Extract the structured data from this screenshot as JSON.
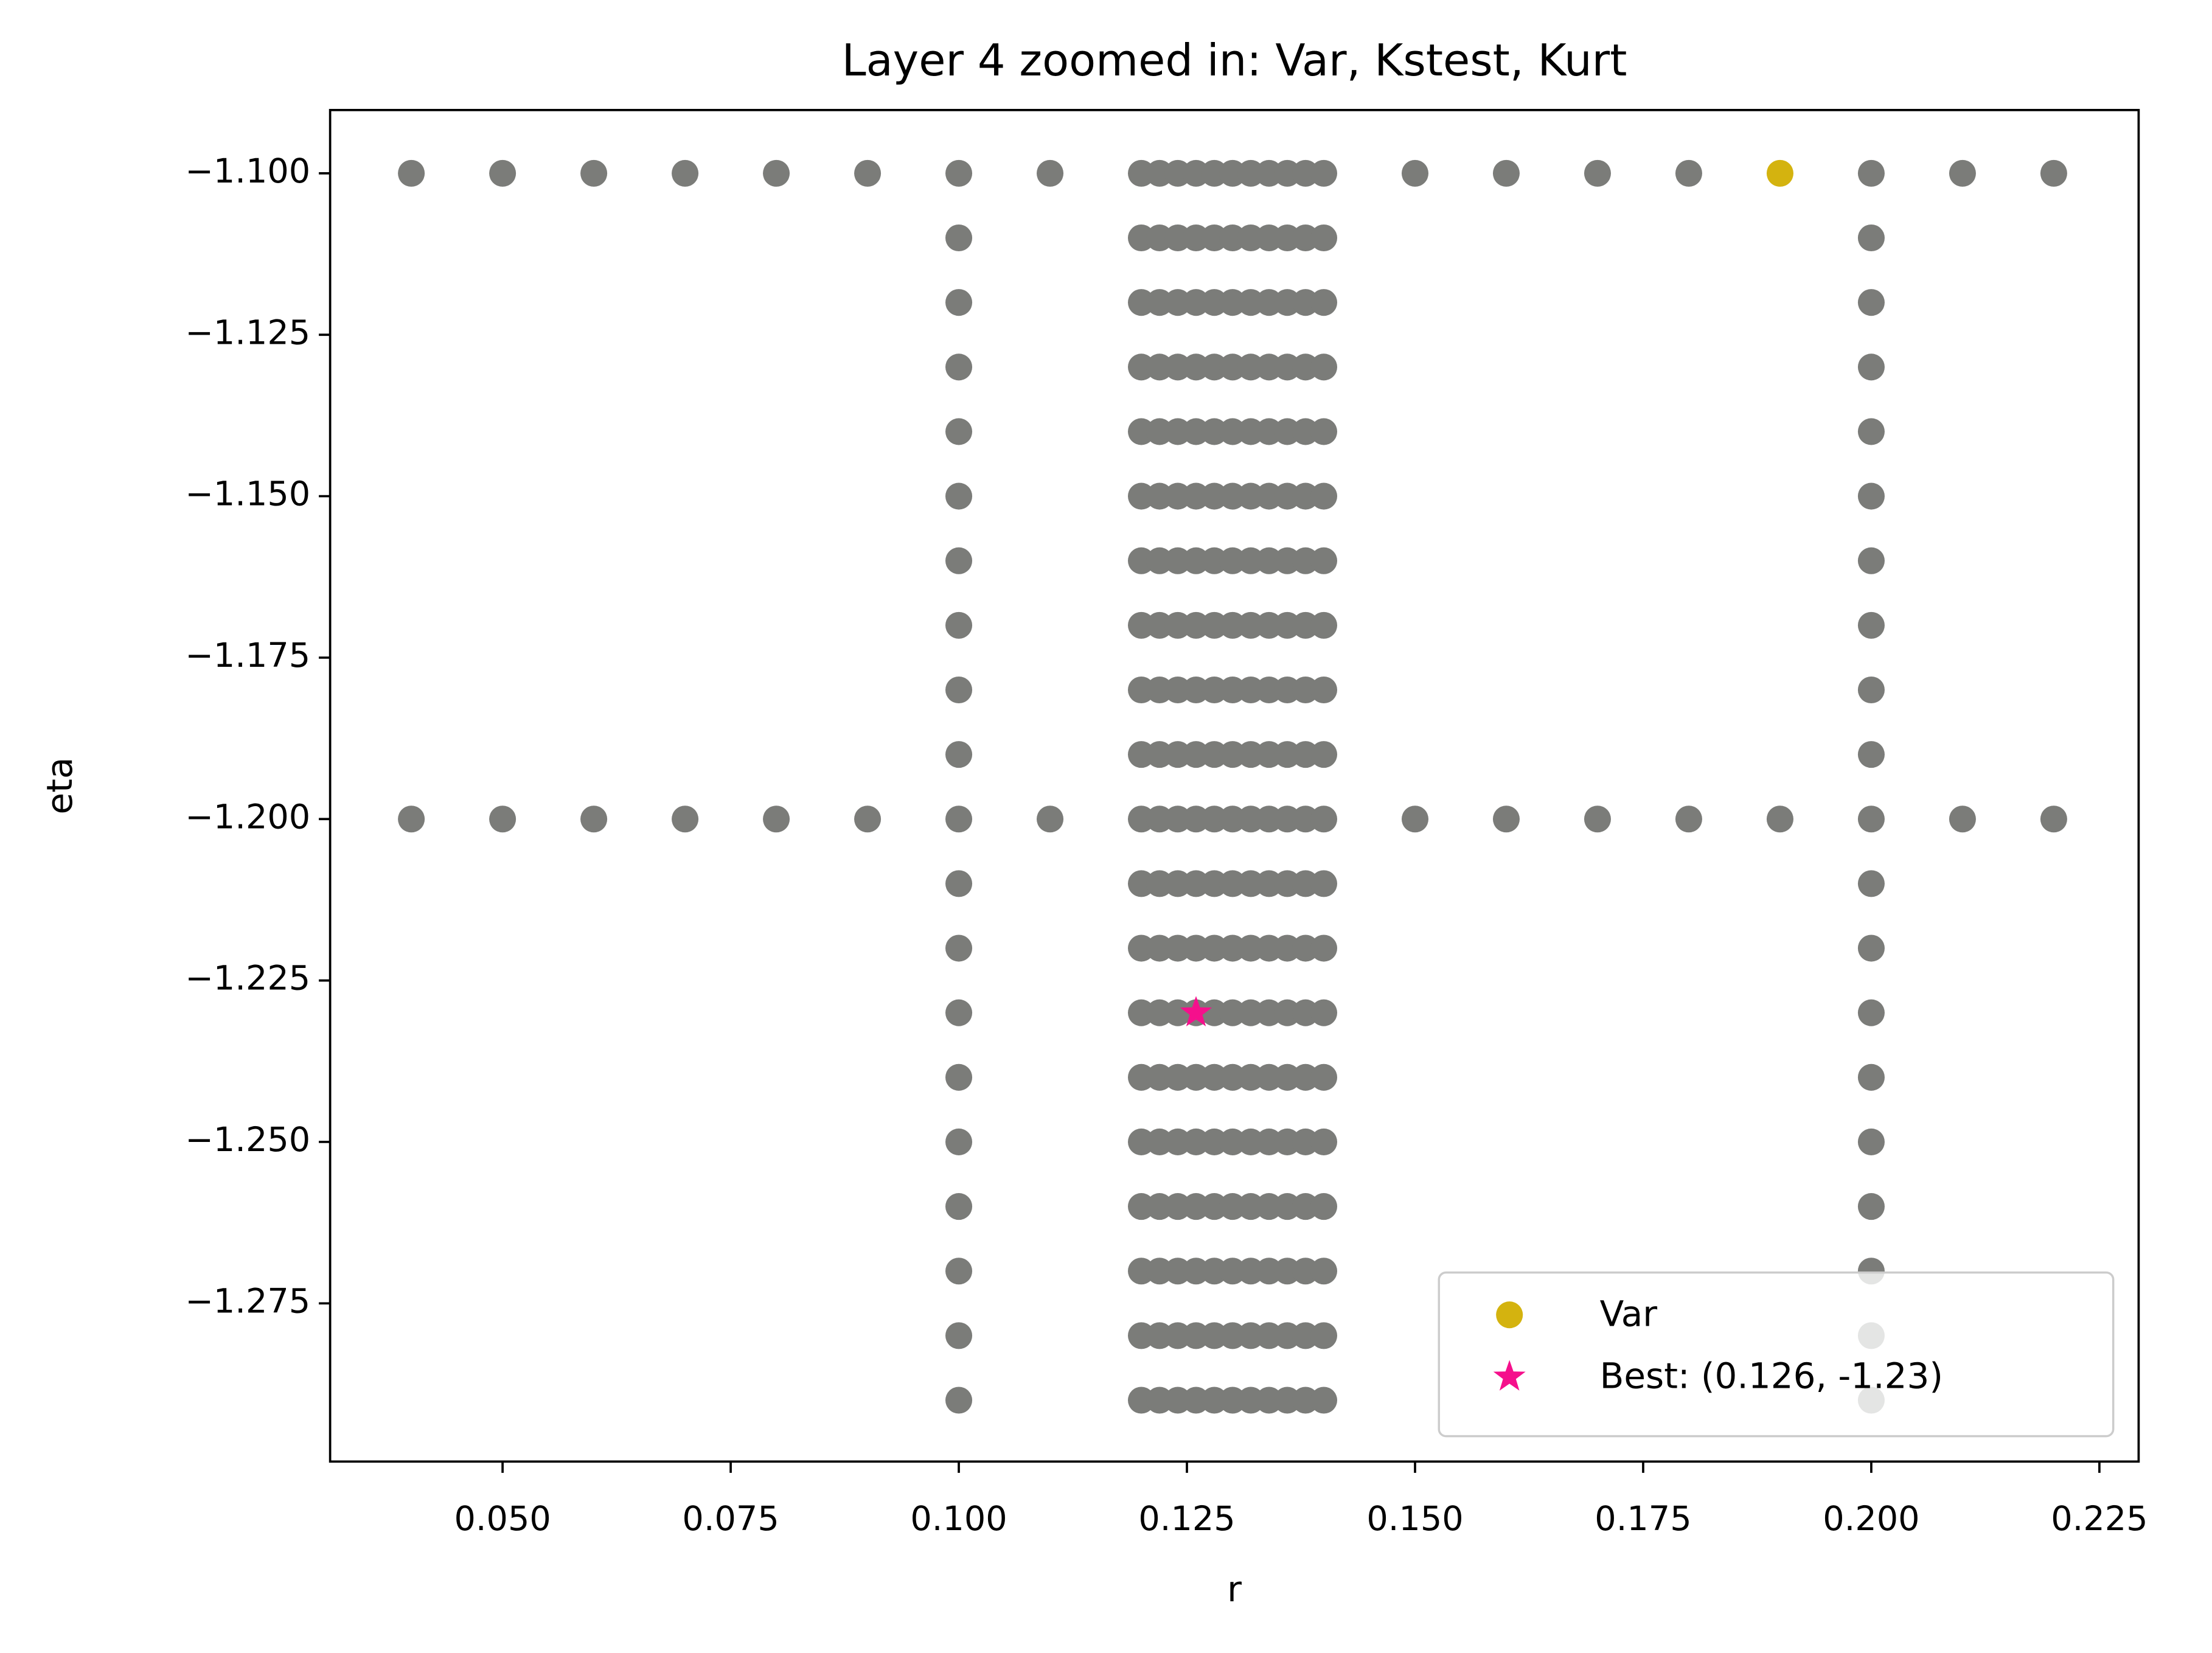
{
  "chart_data": {
    "type": "scatter",
    "title": "Layer 4 zoomed in: Var, Kstest, Kurt",
    "x_label": "r",
    "y_label": "eta",
    "xlim": [
      0.0311,
      0.2293
    ],
    "ylim": [
      -1.2995,
      -1.0902
    ],
    "xticks": [
      {
        "value": 0.05,
        "label": "0.050"
      },
      {
        "value": 0.075,
        "label": "0.075"
      },
      {
        "value": 0.1,
        "label": "0.100"
      },
      {
        "value": 0.125,
        "label": "0.125"
      },
      {
        "value": 0.15,
        "label": "0.150"
      },
      {
        "value": 0.175,
        "label": "0.175"
      },
      {
        "value": 0.2,
        "label": "0.200"
      },
      {
        "value": 0.225,
        "label": "0.225"
      }
    ],
    "yticks": [
      {
        "value": -1.1,
        "label": "−1.100"
      },
      {
        "value": -1.125,
        "label": "−1.125"
      },
      {
        "value": -1.15,
        "label": "−1.150"
      },
      {
        "value": -1.175,
        "label": "−1.175"
      },
      {
        "value": -1.2,
        "label": "−1.200"
      },
      {
        "value": -1.225,
        "label": "−1.225"
      },
      {
        "value": -1.25,
        "label": "−1.250"
      },
      {
        "value": -1.275,
        "label": "−1.275"
      }
    ],
    "legend": "lower right",
    "series": [
      {
        "color": "#7b7c79",
        "marker": "circle",
        "x": [
          0.04,
          0.05,
          0.06,
          0.07,
          0.08,
          0.09,
          0.1,
          0.11,
          0.15,
          0.16,
          0.17,
          0.18,
          0.2,
          0.21,
          0.22
        ],
        "y": [
          -1.1,
          -1.1,
          -1.1,
          -1.1,
          -1.1,
          -1.1,
          -1.1,
          -1.1,
          -1.1,
          -1.1,
          -1.1,
          -1.1,
          -1.1,
          -1.1,
          -1.1
        ]
      },
      {
        "color": "#7b7c79",
        "marker": "circle",
        "x": [
          0.04,
          0.05,
          0.06,
          0.07,
          0.08,
          0.09,
          0.1,
          0.11,
          0.15,
          0.16,
          0.17,
          0.18,
          0.19,
          0.2,
          0.21,
          0.22
        ],
        "y": [
          -1.2,
          -1.2,
          -1.2,
          -1.2,
          -1.2,
          -1.2,
          -1.2,
          -1.2,
          -1.2,
          -1.2,
          -1.2,
          -1.2,
          -1.2,
          -1.2,
          -1.2,
          -1.2
        ]
      },
      {
        "color": "#7b7c79",
        "marker": "circle",
        "x": [
          0.1,
          0.1,
          0.1,
          0.1,
          0.1,
          0.1,
          0.1,
          0.1,
          0.1,
          0.1,
          0.1,
          0.1,
          0.1,
          0.1,
          0.1,
          0.1,
          0.1,
          0.1
        ],
        "y": [
          -1.11,
          -1.12,
          -1.13,
          -1.14,
          -1.15,
          -1.16,
          -1.17,
          -1.18,
          -1.19,
          -1.21,
          -1.22,
          -1.23,
          -1.24,
          -1.25,
          -1.26,
          -1.27,
          -1.28,
          -1.29
        ]
      },
      {
        "color": "#7b7c79",
        "marker": "circle",
        "x": [
          0.2,
          0.2,
          0.2,
          0.2,
          0.2,
          0.2,
          0.2,
          0.2,
          0.2,
          0.2,
          0.2,
          0.2,
          0.2,
          0.2,
          0.2,
          0.2,
          0.2,
          0.2
        ],
        "y": [
          -1.11,
          -1.12,
          -1.13,
          -1.14,
          -1.15,
          -1.16,
          -1.17,
          -1.18,
          -1.19,
          -1.21,
          -1.22,
          -1.23,
          -1.24,
          -1.25,
          -1.26,
          -1.27,
          -1.28,
          -1.29
        ]
      },
      {
        "color": "#7b7c79",
        "marker": "circle",
        "x": [
          0.12,
          0.122,
          0.124,
          0.126,
          0.128,
          0.13,
          0.132,
          0.134,
          0.136,
          0.138,
          0.14
        ],
        "y": [
          -1.1,
          -1.1,
          -1.1,
          -1.1,
          -1.1,
          -1.1,
          -1.1,
          -1.1,
          -1.1,
          -1.1,
          -1.1
        ]
      },
      {
        "color": "#7b7c79",
        "marker": "circle",
        "x": [
          0.12,
          0.122,
          0.124,
          0.126,
          0.128,
          0.13,
          0.132,
          0.134,
          0.136,
          0.138,
          0.14
        ],
        "y": [
          -1.11,
          -1.11,
          -1.11,
          -1.11,
          -1.11,
          -1.11,
          -1.11,
          -1.11,
          -1.11,
          -1.11,
          -1.11
        ]
      },
      {
        "color": "#7b7c79",
        "marker": "circle",
        "x": [
          0.12,
          0.122,
          0.124,
          0.126,
          0.128,
          0.13,
          0.132,
          0.134,
          0.136,
          0.138,
          0.14
        ],
        "y": [
          -1.12,
          -1.12,
          -1.12,
          -1.12,
          -1.12,
          -1.12,
          -1.12,
          -1.12,
          -1.12,
          -1.12,
          -1.12
        ]
      },
      {
        "color": "#7b7c79",
        "marker": "circle",
        "x": [
          0.12,
          0.122,
          0.124,
          0.126,
          0.128,
          0.13,
          0.132,
          0.134,
          0.136,
          0.138,
          0.14
        ],
        "y": [
          -1.13,
          -1.13,
          -1.13,
          -1.13,
          -1.13,
          -1.13,
          -1.13,
          -1.13,
          -1.13,
          -1.13,
          -1.13
        ]
      },
      {
        "color": "#7b7c79",
        "marker": "circle",
        "x": [
          0.12,
          0.122,
          0.124,
          0.126,
          0.128,
          0.13,
          0.132,
          0.134,
          0.136,
          0.138,
          0.14
        ],
        "y": [
          -1.14,
          -1.14,
          -1.14,
          -1.14,
          -1.14,
          -1.14,
          -1.14,
          -1.14,
          -1.14,
          -1.14,
          -1.14
        ]
      },
      {
        "color": "#7b7c79",
        "marker": "circle",
        "x": [
          0.12,
          0.122,
          0.124,
          0.126,
          0.128,
          0.13,
          0.132,
          0.134,
          0.136,
          0.138,
          0.14
        ],
        "y": [
          -1.15,
          -1.15,
          -1.15,
          -1.15,
          -1.15,
          -1.15,
          -1.15,
          -1.15,
          -1.15,
          -1.15,
          -1.15
        ]
      },
      {
        "color": "#7b7c79",
        "marker": "circle",
        "x": [
          0.12,
          0.122,
          0.124,
          0.126,
          0.128,
          0.13,
          0.132,
          0.134,
          0.136,
          0.138,
          0.14
        ],
        "y": [
          -1.16,
          -1.16,
          -1.16,
          -1.16,
          -1.16,
          -1.16,
          -1.16,
          -1.16,
          -1.16,
          -1.16,
          -1.16
        ]
      },
      {
        "color": "#7b7c79",
        "marker": "circle",
        "x": [
          0.12,
          0.122,
          0.124,
          0.126,
          0.128,
          0.13,
          0.132,
          0.134,
          0.136,
          0.138,
          0.14
        ],
        "y": [
          -1.17,
          -1.17,
          -1.17,
          -1.17,
          -1.17,
          -1.17,
          -1.17,
          -1.17,
          -1.17,
          -1.17,
          -1.17
        ]
      },
      {
        "color": "#7b7c79",
        "marker": "circle",
        "x": [
          0.12,
          0.122,
          0.124,
          0.126,
          0.128,
          0.13,
          0.132,
          0.134,
          0.136,
          0.138,
          0.14
        ],
        "y": [
          -1.18,
          -1.18,
          -1.18,
          -1.18,
          -1.18,
          -1.18,
          -1.18,
          -1.18,
          -1.18,
          -1.18,
          -1.18
        ]
      },
      {
        "color": "#7b7c79",
        "marker": "circle",
        "x": [
          0.12,
          0.122,
          0.124,
          0.126,
          0.128,
          0.13,
          0.132,
          0.134,
          0.136,
          0.138,
          0.14
        ],
        "y": [
          -1.19,
          -1.19,
          -1.19,
          -1.19,
          -1.19,
          -1.19,
          -1.19,
          -1.19,
          -1.19,
          -1.19,
          -1.19
        ]
      },
      {
        "color": "#7b7c79",
        "marker": "circle",
        "x": [
          0.12,
          0.122,
          0.124,
          0.126,
          0.128,
          0.13,
          0.132,
          0.134,
          0.136,
          0.138,
          0.14
        ],
        "y": [
          -1.2,
          -1.2,
          -1.2,
          -1.2,
          -1.2,
          -1.2,
          -1.2,
          -1.2,
          -1.2,
          -1.2,
          -1.2
        ]
      },
      {
        "color": "#7b7c79",
        "marker": "circle",
        "x": [
          0.12,
          0.122,
          0.124,
          0.126,
          0.128,
          0.13,
          0.132,
          0.134,
          0.136,
          0.138,
          0.14
        ],
        "y": [
          -1.21,
          -1.21,
          -1.21,
          -1.21,
          -1.21,
          -1.21,
          -1.21,
          -1.21,
          -1.21,
          -1.21,
          -1.21
        ]
      },
      {
        "color": "#7b7c79",
        "marker": "circle",
        "x": [
          0.12,
          0.122,
          0.124,
          0.126,
          0.128,
          0.13,
          0.132,
          0.134,
          0.136,
          0.138,
          0.14
        ],
        "y": [
          -1.22,
          -1.22,
          -1.22,
          -1.22,
          -1.22,
          -1.22,
          -1.22,
          -1.22,
          -1.22,
          -1.22,
          -1.22
        ]
      },
      {
        "color": "#7b7c79",
        "marker": "circle",
        "x": [
          0.12,
          0.122,
          0.124,
          0.126,
          0.128,
          0.13,
          0.132,
          0.134,
          0.136,
          0.138,
          0.14
        ],
        "y": [
          -1.23,
          -1.23,
          -1.23,
          -1.23,
          -1.23,
          -1.23,
          -1.23,
          -1.23,
          -1.23,
          -1.23,
          -1.23
        ]
      },
      {
        "color": "#7b7c79",
        "marker": "circle",
        "x": [
          0.12,
          0.122,
          0.124,
          0.126,
          0.128,
          0.13,
          0.132,
          0.134,
          0.136,
          0.138,
          0.14
        ],
        "y": [
          -1.24,
          -1.24,
          -1.24,
          -1.24,
          -1.24,
          -1.24,
          -1.24,
          -1.24,
          -1.24,
          -1.24,
          -1.24
        ]
      },
      {
        "color": "#7b7c79",
        "marker": "circle",
        "x": [
          0.12,
          0.122,
          0.124,
          0.126,
          0.128,
          0.13,
          0.132,
          0.134,
          0.136,
          0.138,
          0.14
        ],
        "y": [
          -1.25,
          -1.25,
          -1.25,
          -1.25,
          -1.25,
          -1.25,
          -1.25,
          -1.25,
          -1.25,
          -1.25,
          -1.25
        ]
      },
      {
        "color": "#7b7c79",
        "marker": "circle",
        "x": [
          0.12,
          0.122,
          0.124,
          0.126,
          0.128,
          0.13,
          0.132,
          0.134,
          0.136,
          0.138,
          0.14
        ],
        "y": [
          -1.26,
          -1.26,
          -1.26,
          -1.26,
          -1.26,
          -1.26,
          -1.26,
          -1.26,
          -1.26,
          -1.26,
          -1.26
        ]
      },
      {
        "color": "#7b7c79",
        "marker": "circle",
        "x": [
          0.12,
          0.122,
          0.124,
          0.126,
          0.128,
          0.13,
          0.132,
          0.134,
          0.136,
          0.138,
          0.14
        ],
        "y": [
          -1.27,
          -1.27,
          -1.27,
          -1.27,
          -1.27,
          -1.27,
          -1.27,
          -1.27,
          -1.27,
          -1.27,
          -1.27
        ]
      },
      {
        "color": "#7b7c79",
        "marker": "circle",
        "x": [
          0.12,
          0.122,
          0.124,
          0.126,
          0.128,
          0.13,
          0.132,
          0.134,
          0.136,
          0.138,
          0.14
        ],
        "y": [
          -1.28,
          -1.28,
          -1.28,
          -1.28,
          -1.28,
          -1.28,
          -1.28,
          -1.28,
          -1.28,
          -1.28,
          -1.28
        ]
      },
      {
        "color": "#7b7c79",
        "marker": "circle",
        "x": [
          0.12,
          0.122,
          0.124,
          0.126,
          0.128,
          0.13,
          0.132,
          0.134,
          0.136,
          0.138,
          0.14
        ],
        "y": [
          -1.29,
          -1.29,
          -1.29,
          -1.29,
          -1.29,
          -1.29,
          -1.29,
          -1.29,
          -1.29,
          -1.29,
          -1.29
        ]
      },
      {
        "name": "Var",
        "color": "#d4b30f",
        "marker": "circle",
        "x": [
          0.19
        ],
        "y": [
          -1.1
        ]
      },
      {
        "name": "Best: (0.126, -1.23)",
        "color": "#f5108c",
        "marker": "star",
        "x": [
          0.126
        ],
        "y": [
          -1.23
        ]
      }
    ]
  }
}
